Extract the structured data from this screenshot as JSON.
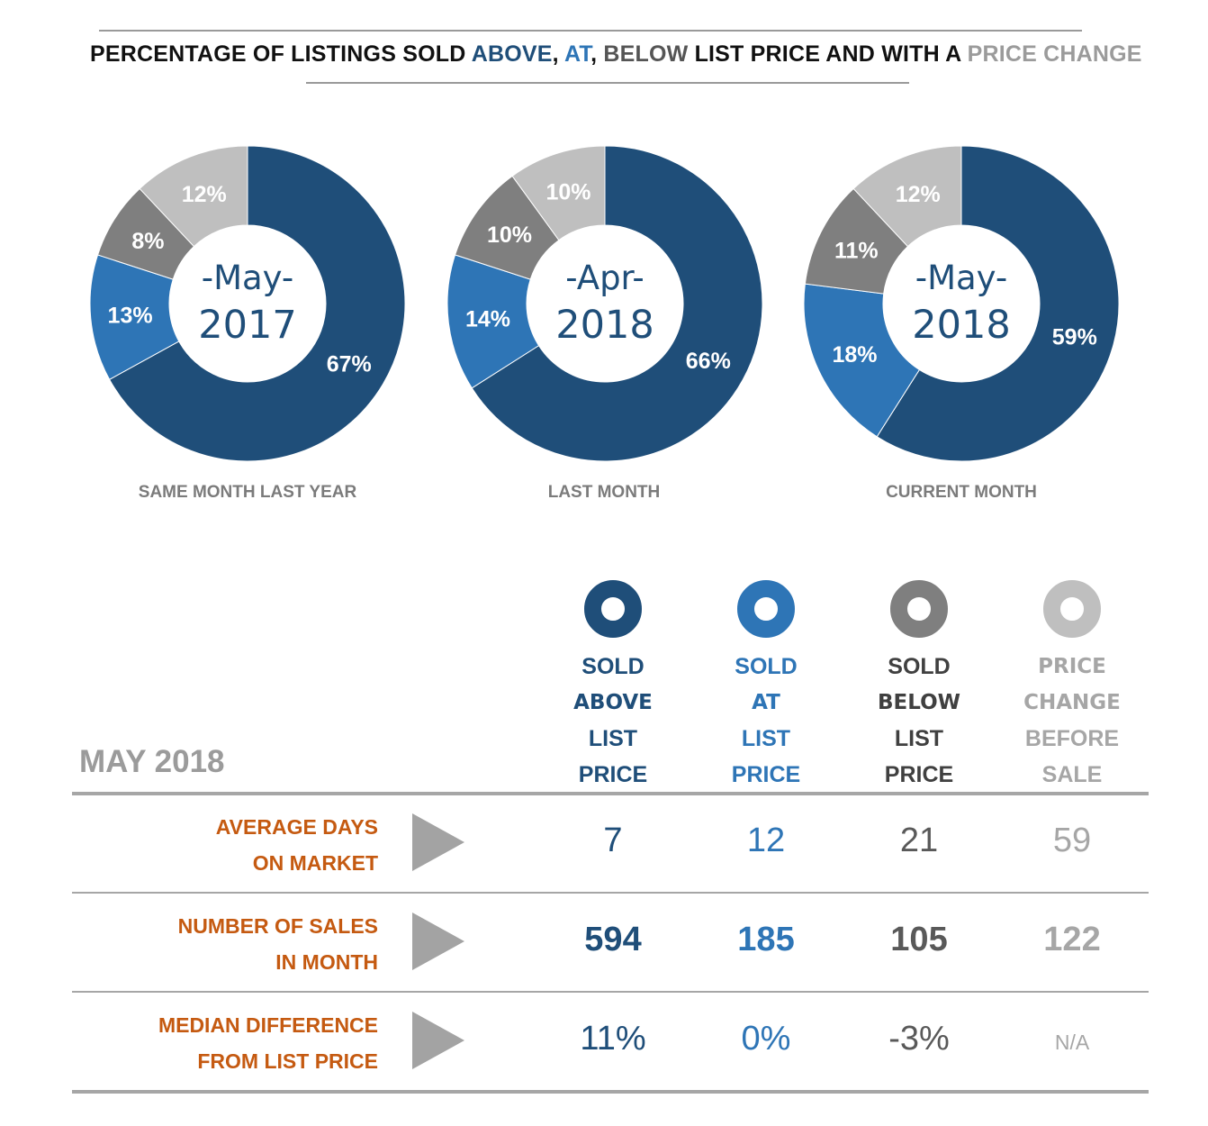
{
  "header": {
    "title_parts": [
      {
        "text": "PERCENTAGE OF LISTINGS SOLD ",
        "color": "#111111"
      },
      {
        "text": "ABOVE",
        "color": "#1f4e79"
      },
      {
        "text": ", ",
        "color": "#111111"
      },
      {
        "text": "AT",
        "color": "#2e75b6"
      },
      {
        "text": ", ",
        "color": "#111111"
      },
      {
        "text": "BELOW",
        "color": "#555555"
      },
      {
        "text": " LIST PRICE AND WITH A ",
        "color": "#111111"
      },
      {
        "text": "PRICE CHANGE",
        "color": "#9b9b9b"
      }
    ]
  },
  "colors": {
    "above": "#1f4e79",
    "at": "#2e75b6",
    "below": "#7f7f7f",
    "change": "#bfbfbf",
    "accent": "#c55a11"
  },
  "chart_data": [
    {
      "type": "pie",
      "title": "SAME MONTH LAST YEAR",
      "center_line1": "-May-",
      "center_line2": "2017",
      "categories": [
        "Sold Above List Price",
        "Sold At List Price",
        "Sold Below List Price",
        "Price Change Before Sale"
      ],
      "values": [
        67,
        13,
        8,
        12
      ],
      "labels": [
        "67%",
        "13%",
        "8%",
        "12%"
      ]
    },
    {
      "type": "pie",
      "title": "LAST MONTH",
      "center_line1": "-Apr-",
      "center_line2": "2018",
      "categories": [
        "Sold Above List Price",
        "Sold At List Price",
        "Sold Below List Price",
        "Price Change Before Sale"
      ],
      "values": [
        66,
        14,
        10,
        10
      ],
      "labels": [
        "66%",
        "14%",
        "10%",
        "10%"
      ]
    },
    {
      "type": "pie",
      "title": "CURRENT MONTH",
      "center_line1": "-May-",
      "center_line2": "2018",
      "categories": [
        "Sold Above List Price",
        "Sold At List Price",
        "Sold Below List Price",
        "Price Change Before Sale"
      ],
      "values": [
        59,
        18,
        11,
        12
      ],
      "labels": [
        "59%",
        "18%",
        "11%",
        "12%"
      ]
    }
  ],
  "legend": [
    {
      "lines": [
        "SOLD",
        "ABOVE",
        "LIST",
        "PRICE"
      ]
    },
    {
      "lines": [
        "SOLD",
        "AT",
        "LIST",
        "PRICE"
      ]
    },
    {
      "lines": [
        "SOLD",
        "BELOW",
        "LIST",
        "PRICE"
      ]
    },
    {
      "lines": [
        "PRICE",
        "CHANGE",
        "BEFORE",
        "SALE"
      ]
    }
  ],
  "table": {
    "period": "MAY 2018",
    "rows": [
      {
        "label_line1": "AVERAGE DAYS",
        "label_line2": "ON MARKET",
        "values": [
          "7",
          "12",
          "21",
          "59"
        ]
      },
      {
        "label_line1": "NUMBER OF SALES",
        "label_line2": "IN MONTH",
        "values": [
          "594",
          "185",
          "105",
          "122"
        ]
      },
      {
        "label_line1": "MEDIAN DIFFERENCE",
        "label_line2": "FROM LIST PRICE",
        "values": [
          "11%",
          "0%",
          "-3%",
          "N/A"
        ]
      }
    ]
  }
}
